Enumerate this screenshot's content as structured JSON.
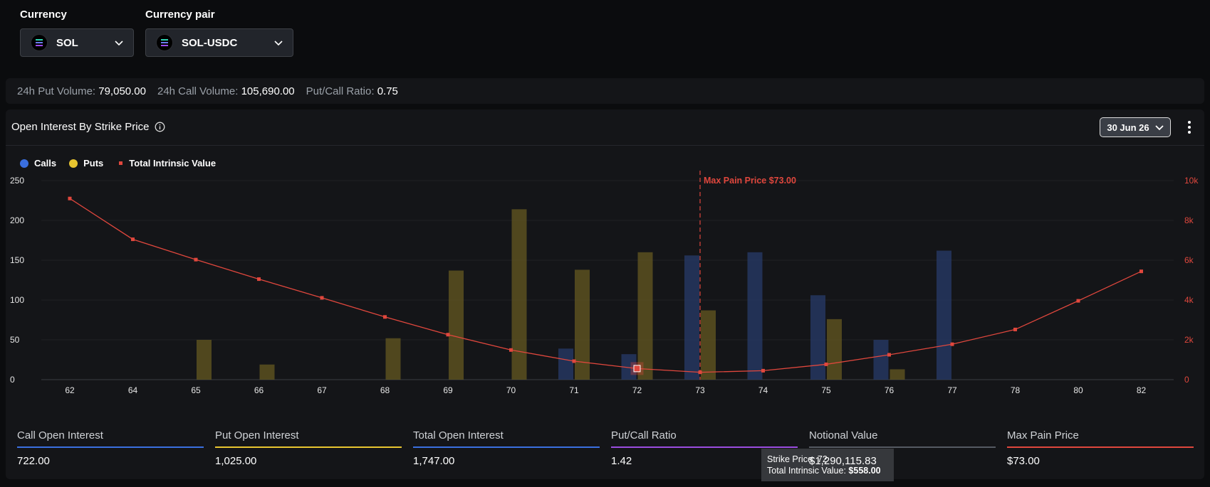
{
  "selectors": {
    "currency": {
      "label": "Currency",
      "value": "SOL"
    },
    "pair": {
      "label": "Currency pair",
      "value": "SOL-USDC"
    }
  },
  "stats": [
    {
      "label": "24h Put Volume:",
      "value": "79,050.00"
    },
    {
      "label": "24h Call Volume:",
      "value": "105,690.00"
    },
    {
      "label": "Put/Call Ratio:",
      "value": "0.75"
    }
  ],
  "panel": {
    "title": "Open Interest By Strike Price",
    "date": "30 Jun 26"
  },
  "legend": [
    {
      "name": "Calls",
      "color": "#3a6fe0",
      "shape": "dot"
    },
    {
      "name": "Puts",
      "color": "#e8c530",
      "shape": "dot"
    },
    {
      "name": "Total Intrinsic Value",
      "color": "#e0473d",
      "shape": "square"
    }
  ],
  "chart_data": {
    "type": "bar",
    "categories": [
      "62",
      "64",
      "65",
      "66",
      "67",
      "68",
      "69",
      "70",
      "71",
      "72",
      "73",
      "74",
      "75",
      "76",
      "77",
      "78",
      "80",
      "82"
    ],
    "series": [
      {
        "name": "Calls",
        "axis": "left",
        "values": [
          0,
          0,
          0,
          0,
          0,
          0,
          0,
          0,
          39,
          32,
          156,
          160,
          106,
          50,
          162,
          0,
          0,
          0
        ]
      },
      {
        "name": "Puts",
        "axis": "left",
        "values": [
          0,
          0,
          50,
          19,
          0,
          52,
          137,
          214,
          138,
          160,
          87,
          0,
          76,
          13,
          0,
          0,
          0,
          0
        ]
      },
      {
        "name": "Total Intrinsic Value",
        "type": "line",
        "axis": "right",
        "values": [
          9100,
          7050,
          6030,
          5050,
          4110,
          3150,
          2260,
          1490,
          930,
          558,
          370,
          450,
          770,
          1250,
          1780,
          2520,
          3960,
          5440
        ]
      }
    ],
    "y_left": {
      "min": 0,
      "max": 250,
      "ticks": [
        "0",
        "50",
        "100",
        "150",
        "200",
        "250"
      ]
    },
    "y_right": {
      "min": 0,
      "max": 10000,
      "ticks": [
        "0",
        "2k",
        "4k",
        "6k",
        "8k",
        "10k"
      ]
    },
    "annotation": {
      "label": "Max Pain Price $73.00",
      "at": "73"
    },
    "tooltip": {
      "strike_label": "Strike Price:",
      "strike": "72",
      "value_label": "Total Intrinsic Value:",
      "value": "$558.00"
    },
    "highlight_index": 9,
    "grid": true,
    "legend_position": "top-left"
  },
  "metrics": [
    {
      "label": "Call Open Interest",
      "value": "722.00",
      "color": "#3a6fe0"
    },
    {
      "label": "Put Open Interest",
      "value": "1,025.00",
      "color": "#e8c530"
    },
    {
      "label": "Total Open Interest",
      "value": "1,747.00",
      "color": "#3a6fe0"
    },
    {
      "label": "Put/Call Ratio",
      "value": "1.42",
      "color": "#9b4de0"
    },
    {
      "label": "Notional Value",
      "value": "$1,290,115.83",
      "color": "#555a62"
    },
    {
      "label": "Max Pain Price",
      "value": "$73.00",
      "color": "#e0473d"
    }
  ]
}
